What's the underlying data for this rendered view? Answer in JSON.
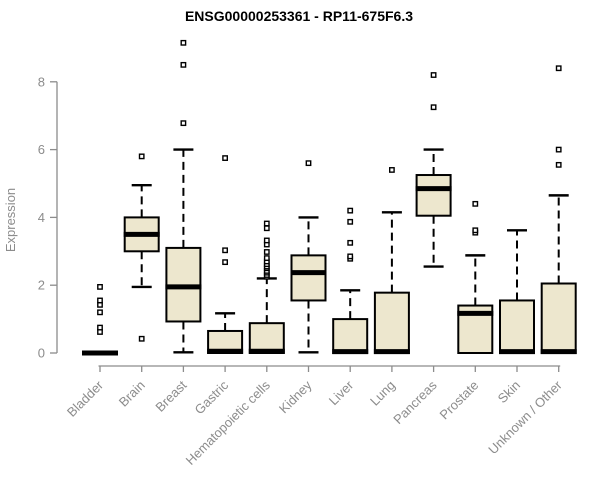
{
  "chart": {
    "title": "ENSG00000253361 - RP11-675F6.3",
    "ylabel": "Expression",
    "colors": {
      "box_fill": "#EDE7CE",
      "box_border": "#000000",
      "median": "#000000",
      "whisker": "#000000",
      "outlier_stroke": "#000000",
      "outlier_fill": "#ffffff",
      "axis": "#8c8c8c",
      "tick_label": "#8c8c8c",
      "title": "#000000",
      "background": "#ffffff"
    }
  },
  "chart_data": {
    "type": "boxplot",
    "title": "ENSG00000253361 - RP11-675F6.3",
    "xlabel": "",
    "ylabel": "Expression",
    "ylim": [
      0,
      9.4
    ],
    "yticks": [
      0,
      2,
      4,
      6,
      8
    ],
    "grid": false,
    "legend": "none",
    "categories": [
      "Bladder",
      "Brain",
      "Breast",
      "Gastric",
      "Hematopoietic cells",
      "Kidney",
      "Liver",
      "Lung",
      "Pancreas",
      "Prostate",
      "Skin",
      "Unknown / Other"
    ],
    "boxes": [
      {
        "label": "Bladder",
        "whisker_low": 0,
        "q1": 0,
        "median": 0,
        "q3": 0,
        "whisker_high": 0,
        "outliers": [
          0.62,
          0.75,
          1.2,
          1.42,
          1.55,
          1.95
        ]
      },
      {
        "label": "Brain",
        "whisker_low": 1.95,
        "q1": 3.0,
        "median": 3.5,
        "q3": 4.0,
        "whisker_high": 4.95,
        "outliers": [
          0.42,
          5.8
        ]
      },
      {
        "label": "Breast",
        "whisker_low": 0.02,
        "q1": 0.93,
        "median": 1.95,
        "q3": 3.1,
        "whisker_high": 6.0,
        "outliers": [
          6.78,
          8.5,
          9.15
        ]
      },
      {
        "label": "Gastric",
        "whisker_low": 0,
        "q1": 0,
        "median": 0.05,
        "q3": 0.65,
        "whisker_high": 1.17,
        "outliers": [
          2.68,
          3.03,
          5.75
        ]
      },
      {
        "label": "Hematopoietic cells",
        "whisker_low": 0,
        "q1": 0,
        "median": 0.05,
        "q3": 0.88,
        "whisker_high": 2.2,
        "outliers": [
          2.25,
          2.3,
          2.37,
          2.42,
          2.5,
          2.55,
          2.62,
          2.7,
          2.8,
          2.98,
          3.2,
          3.32,
          3.68,
          3.82
        ]
      },
      {
        "label": "Kidney",
        "whisker_low": 0.02,
        "q1": 1.55,
        "median": 2.37,
        "q3": 2.88,
        "whisker_high": 4.0,
        "outliers": [
          5.6
        ]
      },
      {
        "label": "Liver",
        "whisker_low": 0,
        "q1": 0,
        "median": 0.04,
        "q3": 1.0,
        "whisker_high": 1.85,
        "outliers": [
          2.78,
          2.85,
          3.25,
          3.87,
          4.2
        ]
      },
      {
        "label": "Lung",
        "whisker_low": 0,
        "q1": 0,
        "median": 0.04,
        "q3": 1.78,
        "whisker_high": 4.15,
        "outliers": [
          5.4
        ]
      },
      {
        "label": "Pancreas",
        "whisker_low": 2.55,
        "q1": 4.05,
        "median": 4.85,
        "q3": 5.25,
        "whisker_high": 6.0,
        "outliers": [
          7.25,
          8.2
        ]
      },
      {
        "label": "Prostate",
        "whisker_low": 0,
        "q1": 0,
        "median": 1.17,
        "q3": 1.4,
        "whisker_high": 2.88,
        "outliers": [
          3.55,
          3.62,
          4.4
        ]
      },
      {
        "label": "Skin",
        "whisker_low": 0,
        "q1": 0,
        "median": 0.04,
        "q3": 1.55,
        "whisker_high": 3.62,
        "outliers": []
      },
      {
        "label": "Unknown / Other",
        "whisker_low": 0,
        "q1": 0,
        "median": 0.04,
        "q3": 2.05,
        "whisker_high": 4.65,
        "outliers": [
          5.55,
          6.0,
          8.4
        ]
      }
    ]
  }
}
